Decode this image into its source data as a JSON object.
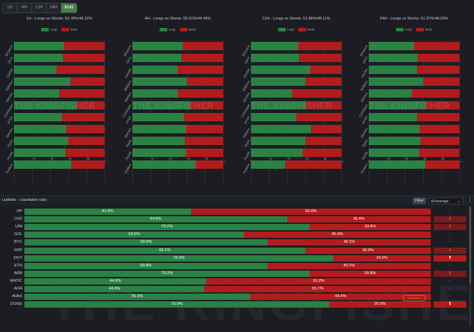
{
  "timeframe_tabs": [
    {
      "label": "1H",
      "active": false
    },
    {
      "label": "4H",
      "active": false
    },
    {
      "label": "12H",
      "active": false
    },
    {
      "label": "24H",
      "active": false
    },
    {
      "label": "Multi",
      "active": true
    }
  ],
  "colors": {
    "longs": "#2a8245",
    "shorts": "#b31c1c",
    "accent": "#4a7f4a"
  },
  "legend": {
    "longs": "Longs",
    "shorts": "Shorts"
  },
  "watermark": "THE KINGFISHER",
  "chart_data": [
    {
      "type": "bar",
      "title": "1H - Longs vs Shorts: 53.78%/46.22%",
      "categories": [
        "Binance",
        "OKX",
        "Deribit",
        "Bitfinex",
        "Bitmex",
        "Coinbase",
        "dYdX",
        "Bitmex",
        "Bybit",
        "Huobi",
        "Kraken"
      ],
      "series": [
        {
          "name": "Longs",
          "values": [
            0.55,
            0.54,
            0.47,
            0.62,
            0.5,
            0.69,
            0.53,
            0.58,
            0.6,
            0.57,
            0.63
          ]
        },
        {
          "name": "Shorts",
          "values": [
            0.45,
            0.46,
            0.53,
            0.38,
            0.5,
            0.31,
            0.47,
            0.42,
            0.4,
            0.43,
            0.37
          ]
        }
      ],
      "xlim": [
        0,
        1
      ],
      "xticks": [
        "0",
        "0.2",
        "0.4",
        "0.6",
        "0.8",
        "1"
      ]
    },
    {
      "type": "bar",
      "title": "4H - Longs vs Shorts: 55.51%/44.49%",
      "categories": [
        "Binance",
        "OKX",
        "Deribit",
        "Bitfinex",
        "Bitmex",
        "Coinbase",
        "dYdX",
        "Bitmex",
        "Bybit",
        "Huobi",
        "Kraken"
      ],
      "series": [
        {
          "name": "Longs",
          "values": [
            0.55,
            0.54,
            0.5,
            0.6,
            0.5,
            0.64,
            0.57,
            0.59,
            0.58,
            0.59,
            0.7
          ]
        },
        {
          "name": "Shorts",
          "values": [
            0.45,
            0.46,
            0.5,
            0.4,
            0.5,
            0.36,
            0.43,
            0.41,
            0.42,
            0.41,
            0.3
          ]
        }
      ],
      "xlim": [
        0,
        1
      ],
      "xticks": [
        "0",
        "0.2",
        "0.4",
        "0.6",
        "0.8",
        "1"
      ]
    },
    {
      "type": "bar",
      "title": "12H - Longs vs Shorts: 51.89%/48.11%",
      "categories": [
        "Binance",
        "OKX",
        "Deribit",
        "Bitfinex",
        "Bitmex",
        "Coinbase",
        "dYdX",
        "Bitmex",
        "Bybit",
        "Huobi",
        "Kraken"
      ],
      "series": [
        {
          "name": "Longs",
          "values": [
            0.52,
            0.53,
            0.65,
            0.6,
            0.45,
            0.61,
            0.5,
            0.66,
            0.6,
            0.57,
            0.38
          ]
        },
        {
          "name": "Shorts",
          "values": [
            0.48,
            0.47,
            0.35,
            0.4,
            0.55,
            0.39,
            0.5,
            0.34,
            0.4,
            0.43,
            0.62
          ]
        }
      ],
      "xlim": [
        0,
        1
      ],
      "xticks": [
        "0",
        "0.2",
        "0.4",
        "0.6",
        "0.8",
        "1"
      ]
    },
    {
      "type": "bar",
      "title": "24H - Longs vs Shorts: 51.97%/48.03%",
      "categories": [
        "Binance",
        "OKX",
        "Deribit",
        "Bitfinex",
        "Bitmex",
        "Coinbase",
        "dYdX",
        "Bitmex",
        "Bybit",
        "Huobi",
        "Kraken"
      ],
      "series": [
        {
          "name": "Longs",
          "values": [
            0.5,
            0.54,
            0.53,
            0.6,
            0.48,
            0.63,
            0.53,
            0.56,
            0.57,
            0.55,
            0.62
          ]
        },
        {
          "name": "Shorts",
          "values": [
            0.5,
            0.46,
            0.47,
            0.4,
            0.52,
            0.37,
            0.47,
            0.44,
            0.43,
            0.45,
            0.38
          ]
        }
      ],
      "xlim": [
        0,
        1
      ],
      "xticks": [
        "0",
        "0.2",
        "0.4",
        "0.6",
        "0.8",
        "1"
      ]
    }
  ],
  "liqratio": {
    "title": "LiqRatio - Liquidation ratio",
    "filter_label": "Filter",
    "leverage_select": "all leverage",
    "previous_label": "Previous",
    "rows": [
      {
        "coin": "OP",
        "long": 41.0,
        "long_label": "41.0%",
        "short_label": "59.0%",
        "indicator": "-",
        "indicator_style": "plain"
      },
      {
        "coin": "CHZ",
        "long": 64.6,
        "long_label": "64.6%",
        "short_label": "35.4%",
        "indicator": "↕",
        "indicator_style": "red"
      },
      {
        "coin": "UNI",
        "long": 70.2,
        "long_label": "70.2%",
        "short_label": "29.8%",
        "indicator": "↕",
        "indicator_style": "red"
      },
      {
        "coin": "SOL",
        "long": 54.0,
        "long_label": "54.0%",
        "short_label": "46.0%",
        "indicator": "-",
        "indicator_style": "plain"
      },
      {
        "coin": "BTC",
        "long": 59.9,
        "long_label": "59.9%",
        "short_label": "40.1%",
        "indicator": "-",
        "indicator_style": "plain"
      },
      {
        "coin": "XRP",
        "long": 69.1,
        "long_label": "69.1%",
        "short_label": "30.9%",
        "indicator": "↕",
        "indicator_style": "red"
      },
      {
        "coin": "DOT",
        "long": 76.0,
        "long_label": "76.0%",
        "short_label": "24.0%",
        "indicator": "⬆",
        "indicator_style": "bright"
      },
      {
        "coin": "ETH",
        "long": 59.8,
        "long_label": "59.8%",
        "short_label": "40.2%",
        "indicator": "-",
        "indicator_style": "plain"
      },
      {
        "coin": "ARB",
        "long": 70.2,
        "long_label": "70.2%",
        "short_label": "29.8%",
        "indicator": "↕",
        "indicator_style": "red"
      },
      {
        "coin": "MATIC",
        "long": 44.8,
        "long_label": "44.8%",
        "short_label": "55.2%",
        "indicator": "-",
        "indicator_style": "plain"
      },
      {
        "coin": "ADA",
        "long": 44.3,
        "long_label": "44.3%",
        "short_label": "55.7%",
        "indicator": "-",
        "indicator_style": "plain"
      },
      {
        "coin": "AVAX",
        "long": 55.6,
        "long_label": "55.6%",
        "short_label": "44.4%",
        "indicator": "-",
        "indicator_style": "plain"
      },
      {
        "coin": "DOGE",
        "long": 75.0,
        "long_label": "75.0%",
        "short_label": "25.0%",
        "indicator": "⬆",
        "indicator_style": "bright"
      }
    ]
  }
}
